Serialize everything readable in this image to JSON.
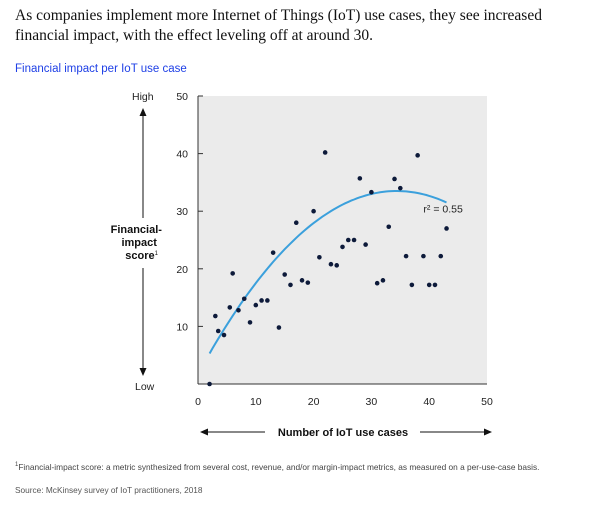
{
  "headline": "As companies implement more Internet of Things (IoT) use cases, they see increased financial impact, with the effect leveling off at around 30.",
  "subtitle": "Financial impact per IoT use case",
  "footnote": {
    "marker": "1",
    "text": "Financial-impact score: a metric synthesized from several cost, revenue, and/or margin-impact metrics, as measured on a per-use-case basis."
  },
  "source": "Source: McKinsey survey of IoT practitioners, 2018",
  "colors": {
    "accent": "#1f40e6",
    "trend": "#3ba0dc",
    "point": "#0d1a3a",
    "panel": "#ebebeb"
  },
  "chart_data": {
    "type": "scatter",
    "title": "Financial impact per IoT use case",
    "xlabel": "Number of IoT use cases",
    "ylabel_lines": [
      "Financial-",
      "impact",
      "score"
    ],
    "ylabel_sup": "1",
    "y_high_label": "High",
    "y_low_label": "Low",
    "xlim": [
      0,
      50
    ],
    "ylim": [
      0,
      50
    ],
    "xticks": [
      0,
      10,
      20,
      30,
      40,
      50
    ],
    "yticks": [
      10,
      20,
      30,
      40,
      50
    ],
    "grid": false,
    "annotation": {
      "text": "r² = 0.55",
      "x": 39,
      "y": 29.8
    },
    "trendline": {
      "type": "quadratic",
      "coefficients": [
        -0.0269,
        1.85,
        1.7
      ],
      "x_range": [
        2,
        43
      ]
    },
    "points": [
      [
        2,
        0
      ],
      [
        3,
        11.8
      ],
      [
        3.5,
        9.2
      ],
      [
        4.5,
        8.5
      ],
      [
        5.5,
        13.3
      ],
      [
        6,
        19.2
      ],
      [
        7,
        12.8
      ],
      [
        8,
        14.8
      ],
      [
        9,
        10.7
      ],
      [
        10,
        13.7
      ],
      [
        11,
        14.5
      ],
      [
        12,
        14.5
      ],
      [
        13,
        22.8
      ],
      [
        14,
        9.8
      ],
      [
        15,
        19
      ],
      [
        16,
        17.2
      ],
      [
        17,
        28
      ],
      [
        18,
        18
      ],
      [
        19,
        17.6
      ],
      [
        20,
        30
      ],
      [
        21,
        22
      ],
      [
        22,
        40.2
      ],
      [
        23,
        20.8
      ],
      [
        24,
        20.6
      ],
      [
        25,
        23.8
      ],
      [
        26,
        25
      ],
      [
        27,
        25
      ],
      [
        28,
        35.7
      ],
      [
        29,
        24.2
      ],
      [
        30,
        33.3
      ],
      [
        31,
        17.5
      ],
      [
        32,
        18
      ],
      [
        33,
        27.3
      ],
      [
        34,
        35.6
      ],
      [
        35,
        34
      ],
      [
        36,
        22.2
      ],
      [
        37,
        17.2
      ],
      [
        38,
        39.7
      ],
      [
        39,
        22.2
      ],
      [
        40,
        17.2
      ],
      [
        41,
        17.2
      ],
      [
        42,
        22.2
      ],
      [
        43,
        27
      ]
    ]
  }
}
